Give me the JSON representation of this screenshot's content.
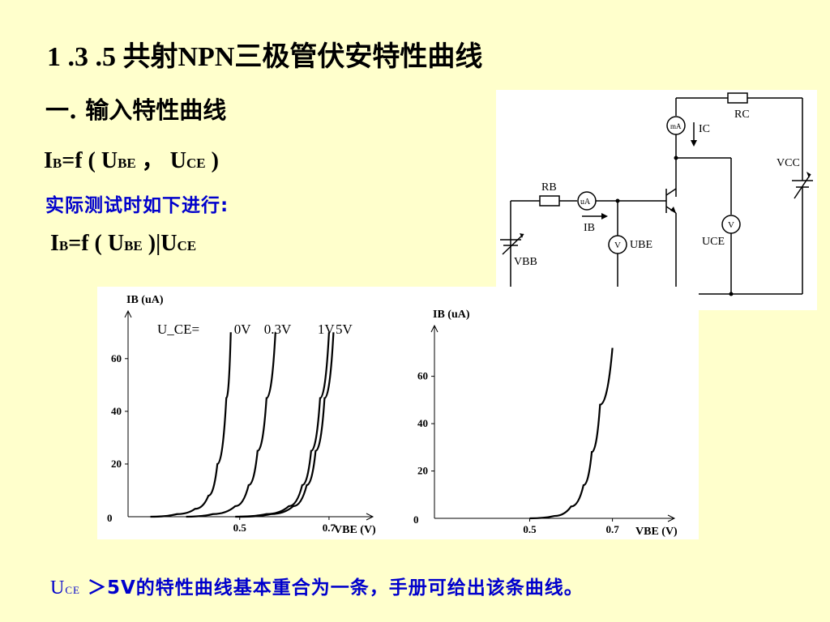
{
  "slide": {
    "title": "1 .3 .5  共射NPN三极管伏安特性曲线",
    "subtitle": "一. 输入特性曲线",
    "formula1": {
      "lhs_main": "I",
      "lhs_sub": "B",
      "eq": "=f ( U",
      "sub1": "BE",
      "mid": " ，  U",
      "sub2": "CE",
      "end": " )"
    },
    "note": "实际测试时如下进行:",
    "formula2": {
      "lhs_main": "I",
      "lhs_sub": "B",
      "eq": "=f ( U",
      "sub1": "BE",
      "end": " )|U",
      "sub2": "CE"
    },
    "footer": {
      "u_main": "U",
      "u_sub": "CE",
      "text": " ＞5V的特性曲线基本重合为一条，手册可给出该条曲线。"
    }
  },
  "circuit": {
    "labels": {
      "rc": "RC",
      "ic": "IC",
      "ma": "mA",
      "vcc": "VCC",
      "rb": "RB",
      "ua": "uA",
      "ib": "IB",
      "ube": "UBE",
      "uce": "UCE",
      "vbb": "VBB",
      "v": "V"
    }
  },
  "chart_data": [
    {
      "type": "line",
      "title": "",
      "ylabel": "I_B (uA)",
      "xlabel": "V_BE (V)",
      "x_ticks": [
        "0.5",
        "0.7"
      ],
      "y_ticks": [
        "20",
        "40",
        "60"
      ],
      "origin_label": "0",
      "legend_prefix": "U_CE=",
      "series": [
        {
          "name": "0V",
          "points": [
            [
              0.3,
              0
            ],
            [
              0.36,
              1
            ],
            [
              0.4,
              3
            ],
            [
              0.43,
              8
            ],
            [
              0.45,
              20
            ],
            [
              0.47,
              45
            ],
            [
              0.48,
              70
            ]
          ]
        },
        {
          "name": "0.3V",
          "points": [
            [
              0.38,
              0
            ],
            [
              0.44,
              1
            ],
            [
              0.49,
              4
            ],
            [
              0.52,
              12
            ],
            [
              0.54,
              25
            ],
            [
              0.56,
              45
            ],
            [
              0.58,
              70
            ]
          ]
        },
        {
          "name": "1V",
          "points": [
            [
              0.49,
              0
            ],
            [
              0.56,
              1
            ],
            [
              0.61,
              4
            ],
            [
              0.64,
              12
            ],
            [
              0.66,
              25
            ],
            [
              0.68,
              45
            ],
            [
              0.7,
              70
            ]
          ]
        },
        {
          "name": "5V",
          "points": [
            [
              0.5,
              0
            ],
            [
              0.57,
              1
            ],
            [
              0.62,
              4
            ],
            [
              0.65,
              12
            ],
            [
              0.67,
              25
            ],
            [
              0.69,
              45
            ],
            [
              0.71,
              70
            ]
          ]
        }
      ]
    },
    {
      "type": "line",
      "title": "",
      "ylabel": "I_B (uA)",
      "xlabel": "V_BE (V)",
      "x_ticks": [
        "0.5",
        "0.7"
      ],
      "y_ticks": [
        "20",
        "40",
        "60"
      ],
      "origin_label": "0",
      "series": [
        {
          "points": [
            [
              0.5,
              0
            ],
            [
              0.56,
              1
            ],
            [
              0.6,
              5
            ],
            [
              0.63,
              14
            ],
            [
              0.65,
              28
            ],
            [
              0.67,
              48
            ],
            [
              0.7,
              72
            ]
          ]
        }
      ]
    }
  ]
}
